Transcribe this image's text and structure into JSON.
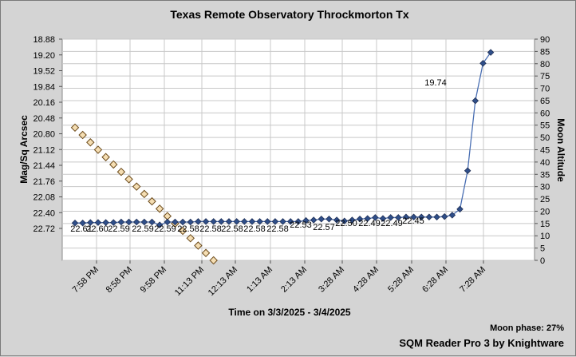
{
  "chart_data": {
    "type": "line",
    "title": "Texas Remote Observatory   Throckmorton Tx",
    "xlabel": "Time on 3/3/2025 - 3/4/2025",
    "ylabel": "Mag/Sq Arcsec",
    "y2label": "Moon Altitude",
    "y_ticks": [
      "18.88",
      "19.20",
      "19.52",
      "19.84",
      "20.16",
      "20.48",
      "20.80",
      "21.12",
      "21.44",
      "21.76",
      "22.08",
      "22.40",
      "22.72"
    ],
    "y_range": [
      18.88,
      22.72
    ],
    "y_inverted": true,
    "y2_ticks": [
      "0",
      "5",
      "10",
      "15",
      "20",
      "25",
      "30",
      "35",
      "40",
      "45",
      "50",
      "55",
      "60",
      "65",
      "70",
      "75",
      "80",
      "85",
      "90"
    ],
    "y2_range": [
      0,
      90
    ],
    "x_ticks": [
      "7:58 PM",
      "8:58 PM",
      "9:58 PM",
      "11:13 PM",
      "12:13 AM",
      "1:13 AM",
      "2:13 AM",
      "3:28 AM",
      "4:28 AM",
      "5:28 AM",
      "6:28 AM",
      "7:28 AM"
    ],
    "grid": true,
    "series": [
      {
        "name": "",
        "axis": "left",
        "color": "#4a6fb3",
        "marker_color": "#2f4f8a",
        "values": [
          22.61,
          22.61,
          22.6,
          22.6,
          22.6,
          22.6,
          22.59,
          22.59,
          22.59,
          22.59,
          22.59,
          22.65,
          22.59,
          22.59,
          22.59,
          22.59,
          22.58,
          22.58,
          22.58,
          22.58,
          22.58,
          22.58,
          22.58,
          22.58,
          22.58,
          22.58,
          22.58,
          22.58,
          22.58,
          22.58,
          22.56,
          22.55,
          22.53,
          22.53,
          22.55,
          22.57,
          22.55,
          22.53,
          22.52,
          22.5,
          22.52,
          22.5,
          22.5,
          22.49,
          22.49,
          22.49,
          22.49,
          22.49,
          22.48,
          22.45,
          22.33,
          21.55,
          20.13,
          19.37,
          19.15
        ]
      },
      {
        "name": "",
        "axis": "right",
        "color": "#f5deb3",
        "values": [
          54,
          51,
          48,
          45,
          42,
          39,
          36,
          33,
          30,
          27,
          24,
          21,
          18,
          15,
          12,
          9,
          6,
          3,
          0
        ]
      }
    ],
    "data_labels": [
      "22.61",
      "22.60",
      "22.59",
      "22.59",
      "22.59",
      "22.58",
      "22.58",
      "22.58",
      "22.58",
      "22.58",
      "22.53",
      "22.57",
      "22.50",
      "22.49",
      "22.49",
      "22.45",
      "19.74"
    ]
  },
  "footer": {
    "moon_phase": "Moon phase: 27%",
    "software": "SQM Reader Pro 3 by Knightware"
  }
}
